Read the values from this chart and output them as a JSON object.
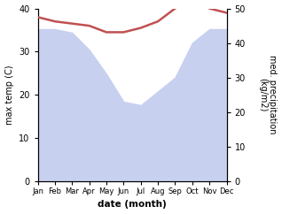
{
  "months": [
    "Jan",
    "Feb",
    "Mar",
    "Apr",
    "May",
    "Jun",
    "Jul",
    "Aug",
    "Sep",
    "Oct",
    "Nov",
    "Dec"
  ],
  "month_indices": [
    0,
    1,
    2,
    3,
    4,
    5,
    6,
    7,
    8,
    9,
    10,
    11
  ],
  "precipitation": [
    44,
    44,
    43,
    38,
    31,
    23,
    22,
    26,
    30,
    40,
    44,
    44
  ],
  "max_temp": [
    38,
    37,
    36.5,
    36,
    34.5,
    34.5,
    35.5,
    37,
    40,
    42,
    40,
    39
  ],
  "temp_color": "#c05050",
  "precip_fill_color": "#c8d0f0",
  "ylabel_left": "max temp (C)",
  "ylabel_right": "med. precipitation\n(kg/m2)",
  "xlabel": "date (month)",
  "ylim_left": [
    0,
    40
  ],
  "ylim_right": [
    0,
    50
  ],
  "yticks_left": [
    0,
    10,
    20,
    30,
    40
  ],
  "yticks_right": [
    0,
    10,
    20,
    30,
    40,
    50
  ],
  "bg_color": "#ffffff"
}
